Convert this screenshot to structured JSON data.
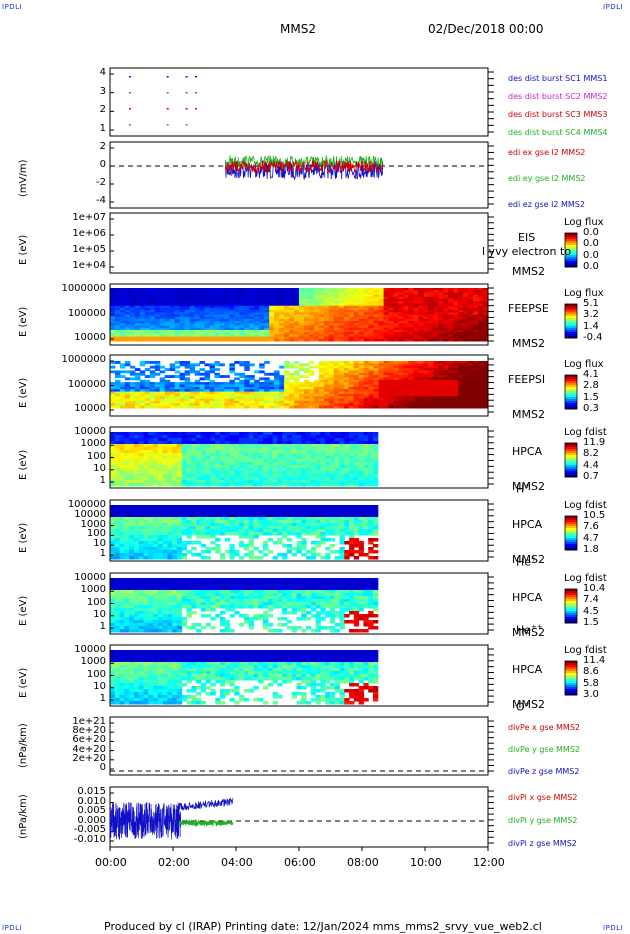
{
  "header": {
    "corner_tl": "IPDLI",
    "corner_tr": "IPDLI",
    "corner_bl": "IPDLI",
    "corner_br": "IPDLI",
    "spacecraft": "MMS2",
    "datetime": "02/Dec/2018 00:00"
  },
  "footer": {
    "produced": "Produced by cl (IRAP)   Printing date: 12/Jan/2024   mms_mms2_srvy_vue_web2.cl"
  },
  "colors": {
    "blue": "#1010c8",
    "magenta": "#d020d0",
    "red": "#d00000",
    "green": "#20b020"
  },
  "chart_data": {
    "type": "stacked-timeseries",
    "x_ticks": [
      "00:00",
      "02:00",
      "04:00",
      "06:00",
      "08:00",
      "10:00",
      "12:00"
    ],
    "xlim": [
      "00:00",
      "12:00"
    ],
    "panels": [
      {
        "id": "burst",
        "ylabel": "",
        "yticks": [
          "4",
          "3",
          "2",
          "1"
        ],
        "legend": [
          "des dist burst SC1 MMS1",
          "des dist burst SC2 MMS2",
          "des dist burst SC3 MMS3",
          "des dist burst SC4 MMS4"
        ],
        "legend_colors": [
          "#1010c8",
          "#d020d0",
          "#d00000",
          "#20b020"
        ]
      },
      {
        "id": "edi",
        "ylabel": "(mV/m)",
        "yticks": [
          "2",
          "0",
          "-2",
          "-4"
        ],
        "ylim": [
          -5,
          3
        ],
        "legend": [
          "edi ex gse l2 MMS2",
          "edi ey gse l2 MMS2",
          "edi ez gse l2 MMS2"
        ],
        "legend_colors": [
          "#d00000",
          "#20b020",
          "#1010c8"
        ],
        "data_span": [
          "03:40",
          "08:40"
        ]
      },
      {
        "id": "eis",
        "ylabel": "E (eV)",
        "yticks": [
          "1e+07",
          "1e+06",
          "1e+05",
          "1e+04"
        ],
        "instrument": "EIS",
        "spacecraft": "MMS2",
        "overlay_text": "l yvy electron to",
        "cb_title": "Log flux",
        "cb_ticks": [
          "0.0",
          "0.0",
          "0.0",
          "0.0"
        ]
      },
      {
        "id": "feepse",
        "ylabel": "E (eV)",
        "yticks": [
          "1000000",
          "100000",
          "10000"
        ],
        "instrument": "FEEPSE",
        "spacecraft": "MMS2",
        "cb_title": "Log flux",
        "cb_ticks": [
          "5.1",
          "3.2",
          "1.4",
          "-0.4"
        ]
      },
      {
        "id": "feepsi",
        "ylabel": "E (eV)",
        "yticks": [
          "1000000",
          "100000",
          "10000"
        ],
        "instrument": "FEEPSI",
        "spacecraft": "MMS2",
        "cb_title": "Log flux",
        "cb_ticks": [
          "4.1",
          "2.8",
          "1.5",
          "0.3"
        ]
      },
      {
        "id": "hpca-h",
        "ylabel": "E (eV)",
        "yticks": [
          "10000",
          "1000",
          "100",
          "10",
          "1"
        ],
        "instrument": "HPCA",
        "spacecraft": "MMS2",
        "species": "H",
        "species_sup": "+",
        "cb_title": "Log fdist",
        "cb_ticks": [
          "11.9",
          "8.2",
          "4.4",
          "0.7"
        ]
      },
      {
        "id": "hpca-he",
        "ylabel": "E (eV)",
        "yticks": [
          "100000",
          "10000",
          "1000",
          "100",
          "10",
          "1"
        ],
        "instrument": "HPCA",
        "spacecraft": "MMS2",
        "species": "He",
        "species_sup": "+",
        "cb_title": "Log fdist",
        "cb_ticks": [
          "10.5",
          "7.6",
          "4.7",
          "1.8"
        ]
      },
      {
        "id": "hpca-he2",
        "ylabel": "E (eV)",
        "yticks": [
          "10000",
          "1000",
          "100",
          "10",
          "1"
        ],
        "instrument": "HPCA",
        "spacecraft": "MMS2",
        "species": "He",
        "species_sup": "++",
        "cb_title": "Log fdist",
        "cb_ticks": [
          "10.4",
          "7.4",
          "4.5",
          "1.5"
        ]
      },
      {
        "id": "hpca-o",
        "ylabel": "E (eV)",
        "yticks": [
          "10000",
          "1000",
          "100",
          "10",
          "1"
        ],
        "instrument": "HPCA",
        "spacecraft": "MMS2",
        "species": "O",
        "species_sup": "+",
        "cb_title": "Log fdist",
        "cb_ticks": [
          "11.4",
          "8.6",
          "5.8",
          "3.0"
        ]
      },
      {
        "id": "divpe",
        "ylabel": "(nPa/km)",
        "yticks": [
          "1e+21",
          "8e+20",
          "6e+20",
          "4e+20",
          "2e+20",
          "0"
        ],
        "legend": [
          "divPe x gse MMS2",
          "divPe y gse MMS2",
          "divPe z gse MMS2"
        ],
        "legend_colors": [
          "#d00000",
          "#20b020",
          "#1010c8"
        ]
      },
      {
        "id": "divpi",
        "ylabel": "(nPa/km)",
        "yticks": [
          "0.015",
          "0.010",
          "0.005",
          "0.000",
          "-0.005",
          "-0.010"
        ],
        "ylim": [
          -0.013,
          0.016
        ],
        "legend": [
          "divPi x gse MMS2",
          "divPi y gse MMS2",
          "divPi z gse MMS2"
        ],
        "legend_colors": [
          "#d00000",
          "#20b020",
          "#1010c8"
        ]
      }
    ]
  }
}
